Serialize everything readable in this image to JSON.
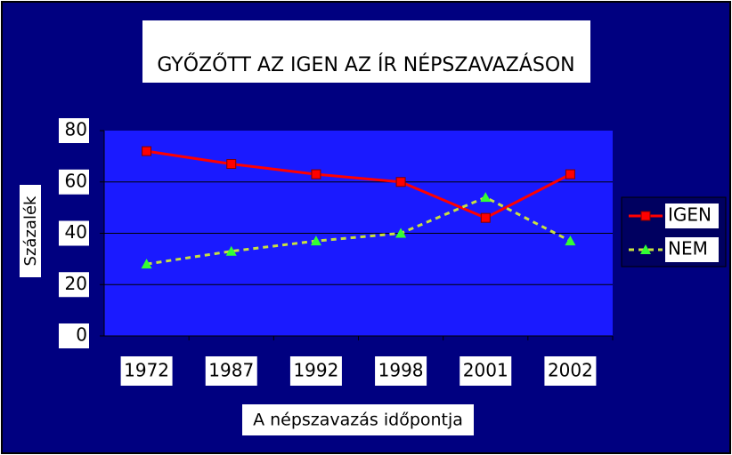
{
  "chart_data": {
    "type": "line",
    "title": "GYŐZŐTT AZ IGEN AZ ÍR NÉPSZAVAZÁSON",
    "x_label": "A népszavazás időpontja",
    "y_label": "Százalék",
    "categories": [
      "1972",
      "1987",
      "1992",
      "1998",
      "2001",
      "2002"
    ],
    "series": [
      {
        "name": "IGEN",
        "color": "#ff0000",
        "marker": "square",
        "values": [
          72,
          67,
          63,
          60,
          46,
          63
        ]
      },
      {
        "name": "NEM",
        "color": "#c8e040",
        "marker_color": "#33ff33",
        "marker": "triangle",
        "dashed": true,
        "values": [
          28,
          33,
          37,
          40,
          54,
          37
        ]
      }
    ],
    "ylim": [
      0,
      80
    ],
    "yticks": [
      0,
      20,
      40,
      60,
      80
    ],
    "grid": true,
    "legend": "right"
  }
}
